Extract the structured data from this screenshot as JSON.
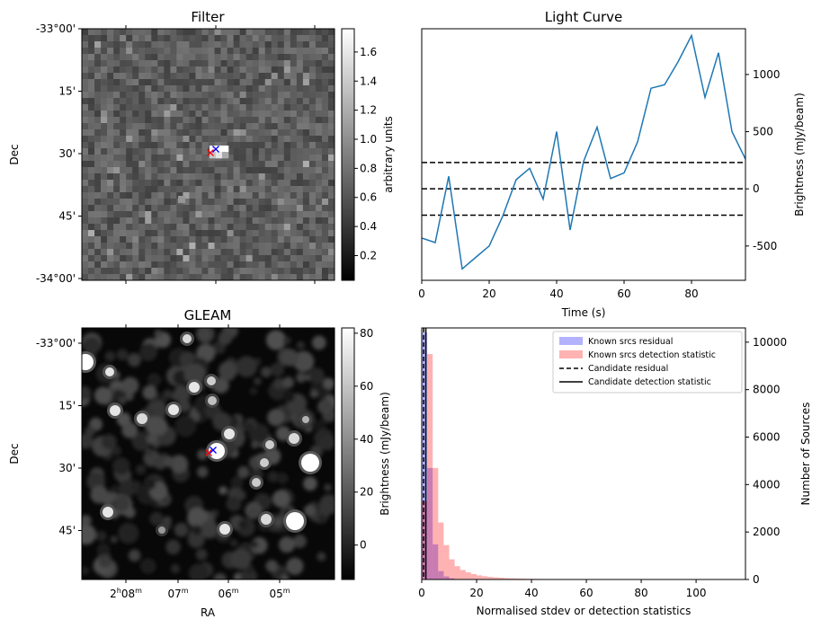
{
  "chart_data": [
    {
      "type": "heatmap",
      "title": "Filter",
      "xlabel": "",
      "ylabel": "Dec",
      "y_ticks": [
        "-33°00'",
        "15'",
        "30'",
        "45'",
        "-34°00'"
      ],
      "colorbar": {
        "label": "arbitrary units",
        "ticks": [
          "0.2",
          "0.4",
          "0.6",
          "0.8",
          "1.0",
          "1.2",
          "1.4",
          "1.6"
        ],
        "range": [
          0.03,
          1.76
        ],
        "cmap": "gray"
      },
      "markers": [
        {
          "symbol": "x",
          "color": "#ff0000"
        },
        {
          "symbol": "x",
          "color": "#0000ff"
        }
      ]
    },
    {
      "type": "line",
      "title": "Light Curve",
      "xlabel": "Time (s)",
      "ylabel": "Brightness (mJy/beam)",
      "xlim": [
        0,
        96
      ],
      "ylim": [
        -800,
        1400
      ],
      "x_ticks": [
        "0",
        "20",
        "40",
        "60",
        "80"
      ],
      "y_ticks": [
        "-500",
        "0",
        "500",
        "1000"
      ],
      "series": [
        {
          "color": "#1f77b4",
          "x": [
            0,
            4,
            8,
            12,
            16,
            20,
            24,
            28,
            32,
            36,
            40,
            44,
            48,
            52,
            56,
            60,
            64,
            68,
            72,
            76,
            80,
            84,
            88,
            92,
            96
          ],
          "values": [
            -430,
            -470,
            110,
            -700,
            -600,
            -500,
            -240,
            80,
            180,
            -90,
            500,
            -360,
            240,
            540,
            90,
            140,
            410,
            880,
            910,
            1110,
            1340,
            800,
            1190,
            500,
            260
          ]
        }
      ],
      "hlines": [
        230,
        0,
        -230
      ]
    },
    {
      "type": "heatmap",
      "title": "GLEAM",
      "xlabel": "RA",
      "ylabel": "Dec",
      "x_ticks": [
        {
          "main": "2",
          "sup1": "h",
          "mid": "08",
          "sup2": "m"
        },
        {
          "main": "07",
          "sup1": "m",
          "mid": "",
          "sup2": ""
        },
        {
          "main": "06",
          "sup1": "m",
          "mid": "",
          "sup2": ""
        },
        {
          "main": "05",
          "sup1": "m",
          "mid": "",
          "sup2": ""
        }
      ],
      "y_ticks": [
        "-33°00'",
        "15'",
        "30'",
        "45'"
      ],
      "colorbar": {
        "label": "Brightness (mJy/beam)",
        "ticks": [
          "0",
          "20",
          "40",
          "60",
          "80"
        ],
        "range": [
          -13,
          82
        ],
        "cmap": "gray"
      },
      "markers": [
        {
          "symbol": "x",
          "color": "#ff0000"
        },
        {
          "symbol": "x",
          "color": "#0000ff"
        }
      ]
    },
    {
      "type": "bar",
      "title": "",
      "xlabel": "Normalised stdev or detection statistics",
      "ylabel": "Number of Sources",
      "xlim": [
        0,
        118
      ],
      "ylim": [
        0,
        10600
      ],
      "x_ticks": [
        "0",
        "20",
        "40",
        "60",
        "80",
        "100"
      ],
      "y_ticks": [
        "0",
        "2000",
        "4000",
        "6000",
        "8000",
        "10000"
      ],
      "bin_width": 2,
      "series": [
        {
          "name": "Known srcs residual",
          "color": "#0000ff",
          "alpha": 0.3,
          "bin_start": 0,
          "values": [
            10400,
            4700,
            1480,
            350,
            130,
            50,
            20,
            8,
            4,
            2
          ]
        },
        {
          "name": "Known srcs detection statistic",
          "color": "#ff0000",
          "alpha": 0.3,
          "bin_start": 0,
          "values": [
            3300,
            9500,
            4700,
            2400,
            1450,
            850,
            560,
            400,
            300,
            230,
            175,
            140,
            110,
            90,
            75,
            60,
            50,
            42,
            36,
            30,
            26,
            22,
            19,
            16,
            14,
            12,
            10,
            9,
            8,
            7,
            6,
            5,
            5,
            4,
            4,
            3,
            3,
            3,
            2,
            2,
            2,
            2,
            2,
            1,
            1,
            1,
            1,
            1,
            1,
            1,
            1,
            1,
            1,
            1,
            1,
            1,
            1,
            1
          ]
        }
      ],
      "vlines": [
        {
          "name": "Candidate residual",
          "x": 0.7,
          "style": "dashed"
        },
        {
          "name": "Candidate detection statistic",
          "x": 1.5,
          "style": "solid"
        }
      ],
      "legend": "top-right"
    }
  ]
}
